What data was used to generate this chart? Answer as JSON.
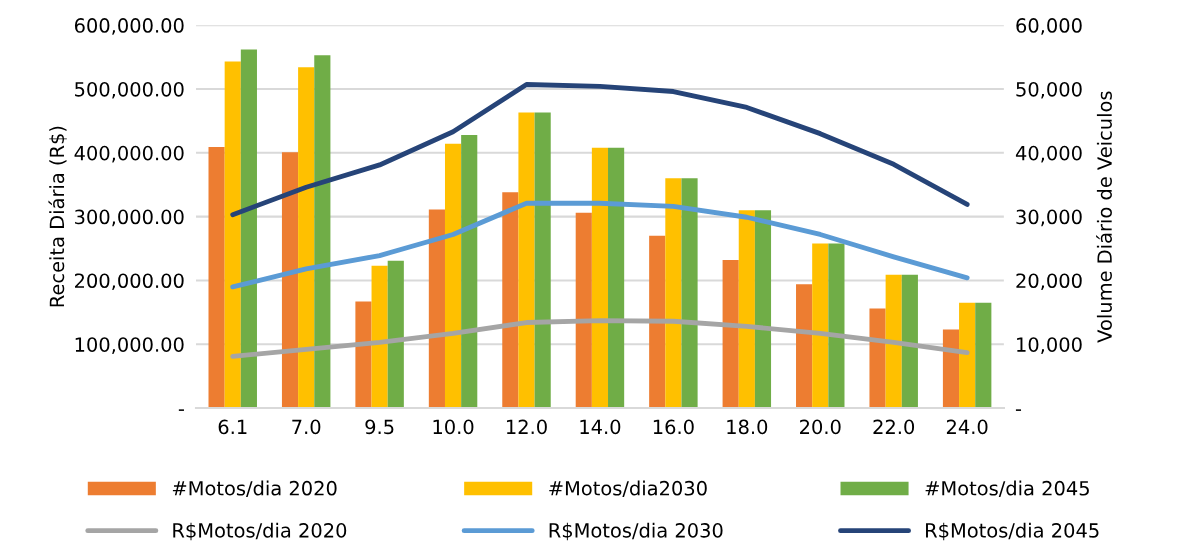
{
  "chart_data": {
    "type": "bar",
    "ylabel": "Receita Diária (R$)",
    "y2label": "Volume Diário de Veiculos",
    "categories": [
      "6.1",
      "7.0",
      "9.5",
      "10.0",
      "12.0",
      "14.0",
      "16.0",
      "18.0",
      "20.0",
      "22.0",
      "24.0"
    ],
    "series": [
      {
        "name": "#Motos/dia 2020",
        "axis": "y2",
        "color": "#ed7d31",
        "values": [
          40900,
          40100,
          16700,
          31100,
          33800,
          30600,
          27000,
          23200,
          19400,
          15600,
          12300
        ]
      },
      {
        "name": "#Motos/dia2030",
        "axis": "y2",
        "color": "#ffc000",
        "values": [
          54300,
          53400,
          22300,
          41400,
          46300,
          40800,
          36000,
          31000,
          25800,
          20900,
          16500
        ]
      },
      {
        "name": "#Motos/dia 2045",
        "axis": "y2",
        "color": "#70ad47",
        "values": [
          56200,
          55300,
          23100,
          42800,
          46300,
          40800,
          36000,
          31000,
          25800,
          20900,
          16500
        ]
      },
      {
        "name": "R$Motos/dia 2020",
        "type": "line",
        "axis": "y",
        "color": "#a5a5a5",
        "values": [
          81000,
          92000,
          103000,
          117000,
          134000,
          137000,
          136000,
          128000,
          117000,
          103000,
          87000
        ]
      },
      {
        "name": "R$Motos/dia 2030",
        "type": "line",
        "axis": "y",
        "color": "#5b9bd5",
        "values": [
          190000,
          218000,
          239000,
          272000,
          321000,
          321000,
          316000,
          299000,
          272000,
          237000,
          204000
        ]
      },
      {
        "name": "R$Motos/dia 2045",
        "type": "line",
        "axis": "y",
        "color": "#264478",
        "values": [
          303000,
          346000,
          381000,
          433000,
          507000,
          504000,
          496000,
          471000,
          430000,
          382000,
          319000
        ]
      }
    ],
    "ylim": [
      0,
      600000
    ],
    "yticks": [
      {
        "value": 0,
        "label": "-"
      },
      {
        "value": 100000,
        "label": "100,000.00"
      },
      {
        "value": 200000,
        "label": "200,000.00"
      },
      {
        "value": 300000,
        "label": "300,000.00"
      },
      {
        "value": 400000,
        "label": "400,000.00"
      },
      {
        "value": 500000,
        "label": "500,000.00"
      },
      {
        "value": 600000,
        "label": "600,000.00"
      }
    ],
    "y2lim": [
      0,
      60000
    ],
    "y2ticks": [
      {
        "value": 0,
        "label": "-"
      },
      {
        "value": 10000,
        "label": "10,000"
      },
      {
        "value": 20000,
        "label": "20,000"
      },
      {
        "value": 30000,
        "label": "30,000"
      },
      {
        "value": 40000,
        "label": "40,000"
      },
      {
        "value": 50000,
        "label": "50,000"
      },
      {
        "value": 60000,
        "label": "60,000"
      }
    ],
    "grid": "y",
    "legend": "bottom",
    "marker": "none",
    "line_style": "solid"
  }
}
